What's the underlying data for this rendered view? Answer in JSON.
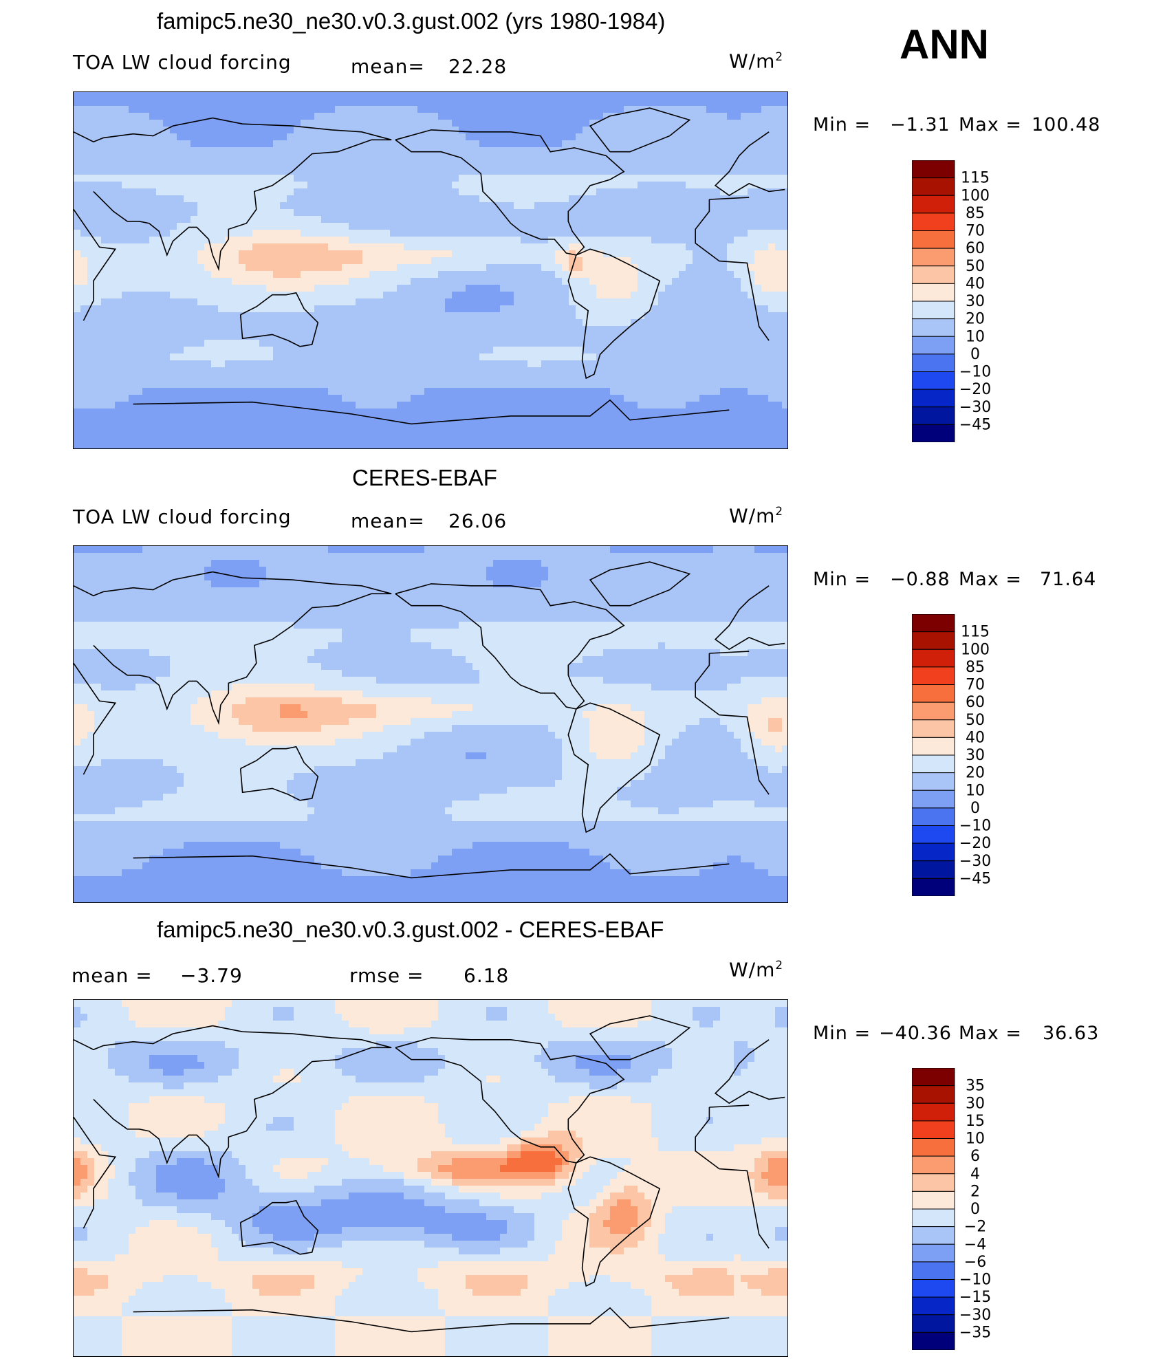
{
  "season": "ANN",
  "colors": {
    "scale13": [
      "#00007a",
      "#00169e",
      "#0626c8",
      "#1f49f0",
      "#4a74f0",
      "#7d9ff4",
      "#a9c4f6",
      "#d4e6fa",
      "#fde9d9",
      "#fcc6a6",
      "#fa9c6f",
      "#f76f3c",
      "#f0401e",
      "#d0200a",
      "#a81200",
      "#7c0000"
    ]
  },
  "panels": [
    {
      "title": "famipc5.ne30_ne30.v0.3.gust.002 (yrs 1980-1984)",
      "left_label": "TOA LW cloud forcing",
      "mean_label": "mean=",
      "mean_value": "22.28",
      "units": "W/m",
      "units_sup": "2",
      "min_label": "Min  =",
      "min_value": "−1.31",
      "max_label": "Max  =",
      "max_value": "100.48"
    },
    {
      "title": "CERES-EBAF",
      "left_label": "TOA LW cloud forcing",
      "mean_label": "mean=",
      "mean_value": "26.06",
      "units": "W/m",
      "units_sup": "2",
      "min_label": "Min  =",
      "min_value": "−0.88",
      "max_label": "Max  =",
      "max_value": "71.64"
    },
    {
      "title": "famipc5.ne30_ne30.v0.3.gust.002 - CERES-EBAF",
      "left_label": "mean  =",
      "mean_label": "rmse  =",
      "left_value": "−3.79",
      "mean_value": "6.18",
      "units": "W/m",
      "units_sup": "2",
      "min_label": "Min  =",
      "min_value": "−40.36",
      "max_label": "Max  =",
      "max_value": "36.63"
    }
  ],
  "chart_data": [
    {
      "type": "heatmap",
      "title": "famipc5.ne30_ne30.v0.3.gust.002 (yrs 1980-1984)",
      "variable": "TOA LW cloud forcing",
      "units": "W/m2",
      "mean": 22.28,
      "min": -1.31,
      "max": 100.48,
      "colorbar_levels": [
        -45,
        -30,
        -20,
        -10,
        0,
        10,
        20,
        30,
        40,
        50,
        60,
        70,
        85,
        100,
        115
      ],
      "colorbar_labels": [
        "115",
        "100",
        "85",
        "70",
        "60",
        "50",
        "40",
        "30",
        "20",
        "10",
        "0",
        "−10",
        "−20",
        "−30",
        "−45"
      ]
    },
    {
      "type": "heatmap",
      "title": "CERES-EBAF",
      "variable": "TOA LW cloud forcing",
      "units": "W/m2",
      "mean": 26.06,
      "min": -0.88,
      "max": 71.64,
      "colorbar_levels": [
        -45,
        -30,
        -20,
        -10,
        0,
        10,
        20,
        30,
        40,
        50,
        60,
        70,
        85,
        100,
        115
      ],
      "colorbar_labels": [
        "115",
        "100",
        "85",
        "70",
        "60",
        "50",
        "40",
        "30",
        "20",
        "10",
        "0",
        "−10",
        "−20",
        "−30",
        "−45"
      ]
    },
    {
      "type": "heatmap",
      "title": "famipc5.ne30_ne30.v0.3.gust.002 - CERES-EBAF",
      "units": "W/m2",
      "mean": -3.79,
      "rmse": 6.18,
      "min": -40.36,
      "max": 36.63,
      "colorbar_levels": [
        -35,
        -30,
        -15,
        -10,
        -6,
        -4,
        -2,
        0,
        2,
        4,
        6,
        10,
        15,
        30,
        35
      ],
      "colorbar_labels": [
        "35",
        "30",
        "15",
        "10",
        "6",
        "4",
        "2",
        "0",
        "−2",
        "−4",
        "−6",
        "−10",
        "−15",
        "−30",
        "−35"
      ]
    }
  ]
}
